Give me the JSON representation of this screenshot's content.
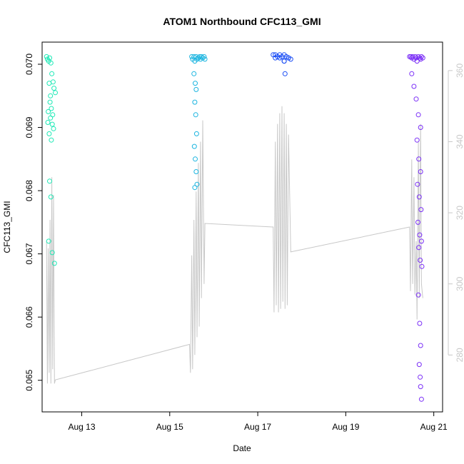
{
  "chart_data": {
    "type": "scatter",
    "title": "ATOM1 Northbound CFC113_GMI",
    "xlabel": "Date",
    "ylabel": "CFC113_GMI",
    "x_unit": "days in August",
    "xlim": [
      12.1,
      21.2
    ],
    "ylim": [
      0.0645,
      0.07035
    ],
    "x_ticks": [
      13,
      15,
      17,
      19,
      21
    ],
    "x_tick_labels": [
      "Aug 13",
      "Aug 15",
      "Aug 17",
      "Aug 19",
      "Aug 21"
    ],
    "y_ticks": [
      0.065,
      0.066,
      0.067,
      0.068,
      0.069,
      0.07
    ],
    "y_tick_labels": [
      "0.065",
      "0.066",
      "0.067",
      "0.068",
      "0.069",
      "0.070"
    ],
    "y2_ticks": [
      280,
      300,
      320,
      340,
      360
    ],
    "y2_tick_labels": [
      "280",
      "300",
      "320",
      "340",
      "360"
    ],
    "y2lim": [
      264,
      368
    ],
    "series": [
      {
        "marker": "circle-open",
        "color": "#1de9b6",
        "x": [
          12.2,
          12.22,
          12.25,
          12.27,
          12.3,
          12.32,
          12.35,
          12.37,
          12.4,
          12.28,
          12.24,
          12.29,
          12.33,
          12.26,
          12.31,
          12.36,
          12.23,
          12.34,
          12.27,
          12.3,
          12.25,
          12.33,
          12.38,
          12.29,
          12.26,
          12.31
        ],
        "y": [
          0.07012,
          0.07008,
          0.07005,
          0.0701,
          0.07002,
          0.06985,
          0.06972,
          0.06962,
          0.06955,
          0.0694,
          0.06925,
          0.06915,
          0.06905,
          0.0689,
          0.0688,
          0.06898,
          0.06908,
          0.0692,
          0.06815,
          0.0679,
          0.0672,
          0.06702,
          0.06685,
          0.0695,
          0.0697,
          0.0693
        ]
      },
      {
        "marker": "circle-open",
        "color": "#1cb5e0",
        "x": [
          15.5,
          15.52,
          15.55,
          15.57,
          15.6,
          15.62,
          15.65,
          15.68,
          15.7,
          15.72,
          15.75,
          15.78,
          15.8,
          15.55,
          15.58,
          15.6,
          15.57,
          15.59,
          15.61,
          15.56,
          15.58,
          15.6,
          15.62,
          15.57
        ],
        "y": [
          0.07012,
          0.07008,
          0.07012,
          0.07005,
          0.07012,
          0.07008,
          0.0701,
          0.07012,
          0.07008,
          0.07012,
          0.0701,
          0.07012,
          0.07008,
          0.06985,
          0.0697,
          0.0696,
          0.0694,
          0.0692,
          0.0689,
          0.0687,
          0.0685,
          0.0683,
          0.0681,
          0.06805
        ]
      },
      {
        "marker": "circle-open",
        "color": "#1a4df5",
        "x": [
          17.35,
          17.4,
          17.45,
          17.5,
          17.55,
          17.6,
          17.65,
          17.7,
          17.75,
          17.4,
          17.5,
          17.6,
          17.7,
          17.6,
          17.62
        ],
        "y": [
          0.07015,
          0.07015,
          0.07012,
          0.07015,
          0.07012,
          0.07015,
          0.07012,
          0.0701,
          0.07008,
          0.0701,
          0.0701,
          0.07005,
          0.0701,
          0.07005,
          0.06985
        ]
      },
      {
        "marker": "circle-open",
        "color": "#7b2ff7",
        "x": [
          20.45,
          20.48,
          20.5,
          20.52,
          20.55,
          20.58,
          20.6,
          20.62,
          20.65,
          20.68,
          20.7,
          20.72,
          20.75,
          20.5,
          20.55,
          20.6,
          20.65,
          20.7,
          20.62,
          20.66,
          20.7,
          20.63,
          20.67,
          20.71,
          20.64,
          20.68,
          20.72,
          20.66,
          20.69,
          20.73,
          20.65,
          20.68,
          20.7,
          20.67,
          20.69,
          20.7,
          20.72
        ],
        "y": [
          0.07012,
          0.07012,
          0.0701,
          0.07012,
          0.07008,
          0.07012,
          0.0701,
          0.07005,
          0.07012,
          0.0701,
          0.07008,
          0.07012,
          0.0701,
          0.06985,
          0.06965,
          0.06945,
          0.0692,
          0.069,
          0.0688,
          0.0685,
          0.0683,
          0.0681,
          0.0679,
          0.0677,
          0.0675,
          0.0673,
          0.0672,
          0.0671,
          0.0669,
          0.0668,
          0.06635,
          0.0659,
          0.06555,
          0.06525,
          0.06505,
          0.0649,
          0.0647
        ]
      }
    ],
    "secondary_line": {
      "color": "#c8c8c8",
      "x": [
        12.2,
        12.22,
        12.24,
        12.26,
        12.28,
        12.3,
        12.32,
        12.34,
        12.36,
        12.38,
        12.4,
        15.45,
        15.47,
        15.5,
        15.52,
        15.55,
        15.57,
        15.6,
        15.62,
        15.65,
        15.67,
        15.7,
        15.72,
        15.75,
        15.78,
        15.8,
        17.35,
        17.37,
        17.4,
        17.42,
        17.45,
        17.47,
        17.5,
        17.52,
        17.55,
        17.57,
        17.6,
        17.62,
        17.65,
        17.67,
        17.7,
        17.75,
        20.45,
        20.47,
        20.5,
        20.52,
        20.55,
        20.57,
        20.6,
        20.62,
        20.65,
        20.67,
        20.7,
        20.72,
        20.75
      ],
      "y": [
        312,
        272,
        310,
        275,
        318,
        272,
        330,
        276,
        325,
        272,
        273,
        283,
        275,
        308,
        276,
        318,
        280,
        326,
        285,
        334,
        288,
        340,
        296,
        346,
        300,
        317,
        316,
        292,
        340,
        294,
        345,
        292,
        348,
        293,
        350,
        295,
        348,
        293,
        345,
        294,
        342,
        309,
        316,
        298,
        335,
        300,
        330,
        297,
        312,
        290,
        340,
        296,
        345,
        300,
        296
      ]
    }
  }
}
